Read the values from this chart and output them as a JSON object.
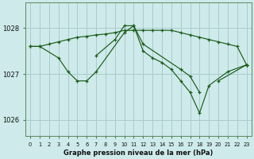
{
  "background_color": "#ceeaea",
  "grid_color": "#aacccc",
  "line_color": "#1a5c1a",
  "title": "Graphe pression niveau de la mer (hPa)",
  "ylabel_ticks": [
    1026,
    1027,
    1028
  ],
  "xlim": [
    -0.5,
    23.5
  ],
  "ylim": [
    1025.65,
    1028.55
  ],
  "series": [
    {
      "x": [
        0,
        1,
        2,
        3,
        4,
        5,
        6,
        7,
        8,
        9,
        10,
        11,
        12,
        13,
        14,
        15,
        16,
        17,
        18,
        19,
        20,
        21,
        22,
        23
      ],
      "y": [
        1027.6,
        1027.6,
        1027.65,
        1027.7,
        1027.75,
        1027.8,
        1027.82,
        1027.85,
        1027.87,
        1027.9,
        1027.95,
        1027.95,
        1027.95,
        1027.95,
        1027.95,
        1027.95,
        1027.9,
        1027.85,
        1027.8,
        1027.75,
        1027.7,
        1027.65,
        1027.6,
        1027.2
      ]
    },
    {
      "x": [
        0,
        1,
        3,
        4,
        5,
        6,
        7,
        10,
        11,
        12,
        13,
        14,
        15,
        16,
        17,
        18,
        19,
        21,
        23
      ],
      "y": [
        1027.6,
        1027.6,
        1027.35,
        1027.05,
        1026.85,
        1026.85,
        1027.05,
        1027.9,
        1028.05,
        1027.5,
        1027.35,
        1027.25,
        1027.1,
        1026.85,
        1026.6,
        1026.15,
        1026.75,
        1027.05,
        1027.2
      ]
    },
    {
      "x": [
        7,
        9,
        10,
        11,
        12,
        16,
        17,
        18,
        19,
        20,
        23
      ],
      "y": [
        1027.4,
        1027.75,
        1028.05,
        1028.05,
        1027.65,
        1027.1,
        1026.95,
        1026.6,
        null,
        1026.85,
        1027.2
      ]
    }
  ]
}
